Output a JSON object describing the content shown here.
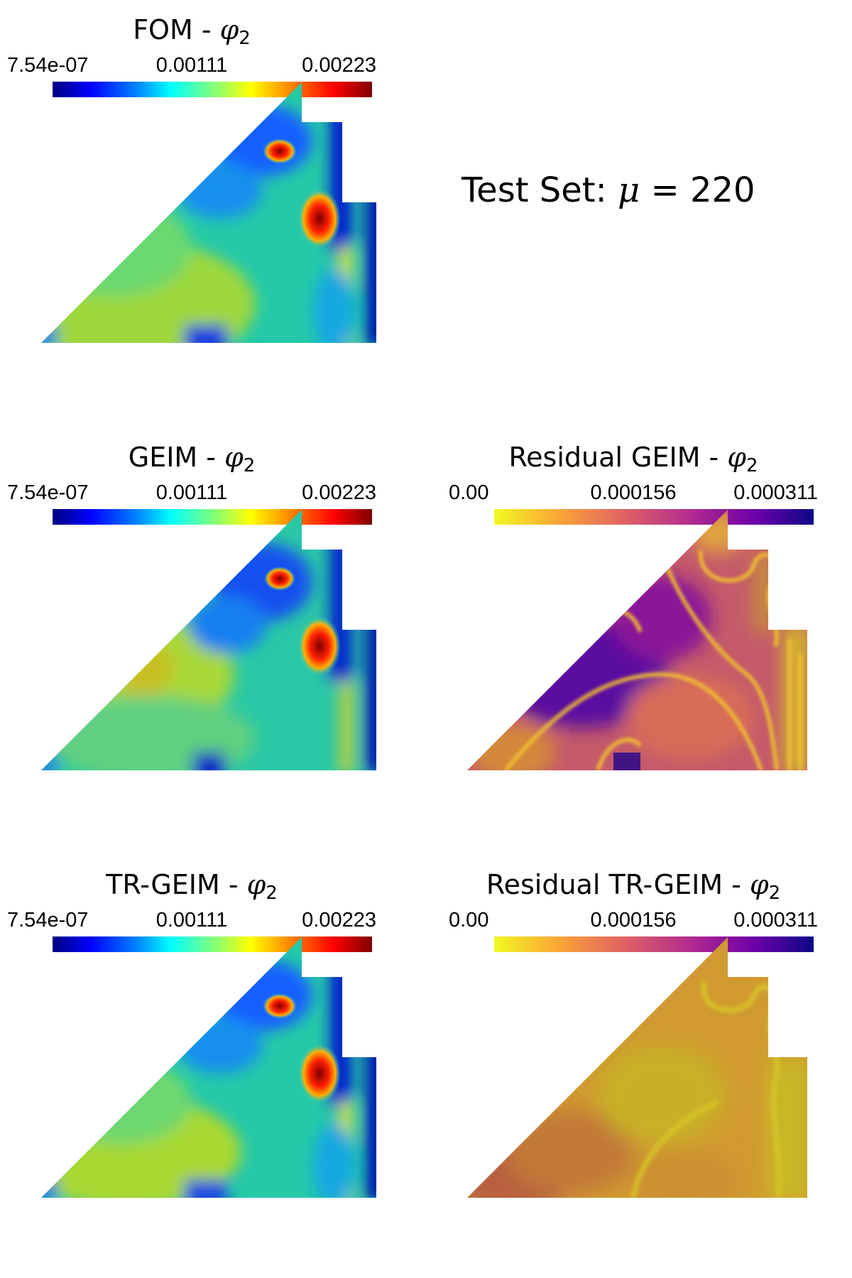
{
  "figure": {
    "test_set_label": {
      "prefix": "Test Set: ",
      "symbol": "μ",
      "relation": " = ",
      "value": "220"
    },
    "panels": [
      {
        "id": "fom",
        "title_prefix": "FOM - ",
        "title_symbol": "φ",
        "title_subscript": "2",
        "colormap": "jet",
        "ticks": [
          "7.54e-07",
          "0.00111",
          "0.00223"
        ]
      },
      {
        "id": "geim",
        "title_prefix": "GEIM - ",
        "title_symbol": "φ",
        "title_subscript": "2",
        "colormap": "jet",
        "ticks": [
          "7.54e-07",
          "0.00111",
          "0.00223"
        ]
      },
      {
        "id": "residual-geim",
        "title_prefix": "Residual GEIM - ",
        "title_symbol": "φ",
        "title_subscript": "2",
        "colormap": "plasma_r",
        "ticks": [
          "0.00",
          "0.000156",
          "0.000311"
        ]
      },
      {
        "id": "trgeim",
        "title_prefix": "TR-GEIM - ",
        "title_symbol": "φ",
        "title_subscript": "2",
        "colormap": "jet",
        "ticks": [
          "7.54e-07",
          "0.00111",
          "0.00223"
        ]
      },
      {
        "id": "residual-trgeim",
        "title_prefix": "Residual TR-GEIM - ",
        "title_symbol": "φ",
        "title_subscript": "2",
        "colormap": "plasma_r",
        "ticks": [
          "0.00",
          "0.000156",
          "0.000311"
        ]
      }
    ]
  }
}
